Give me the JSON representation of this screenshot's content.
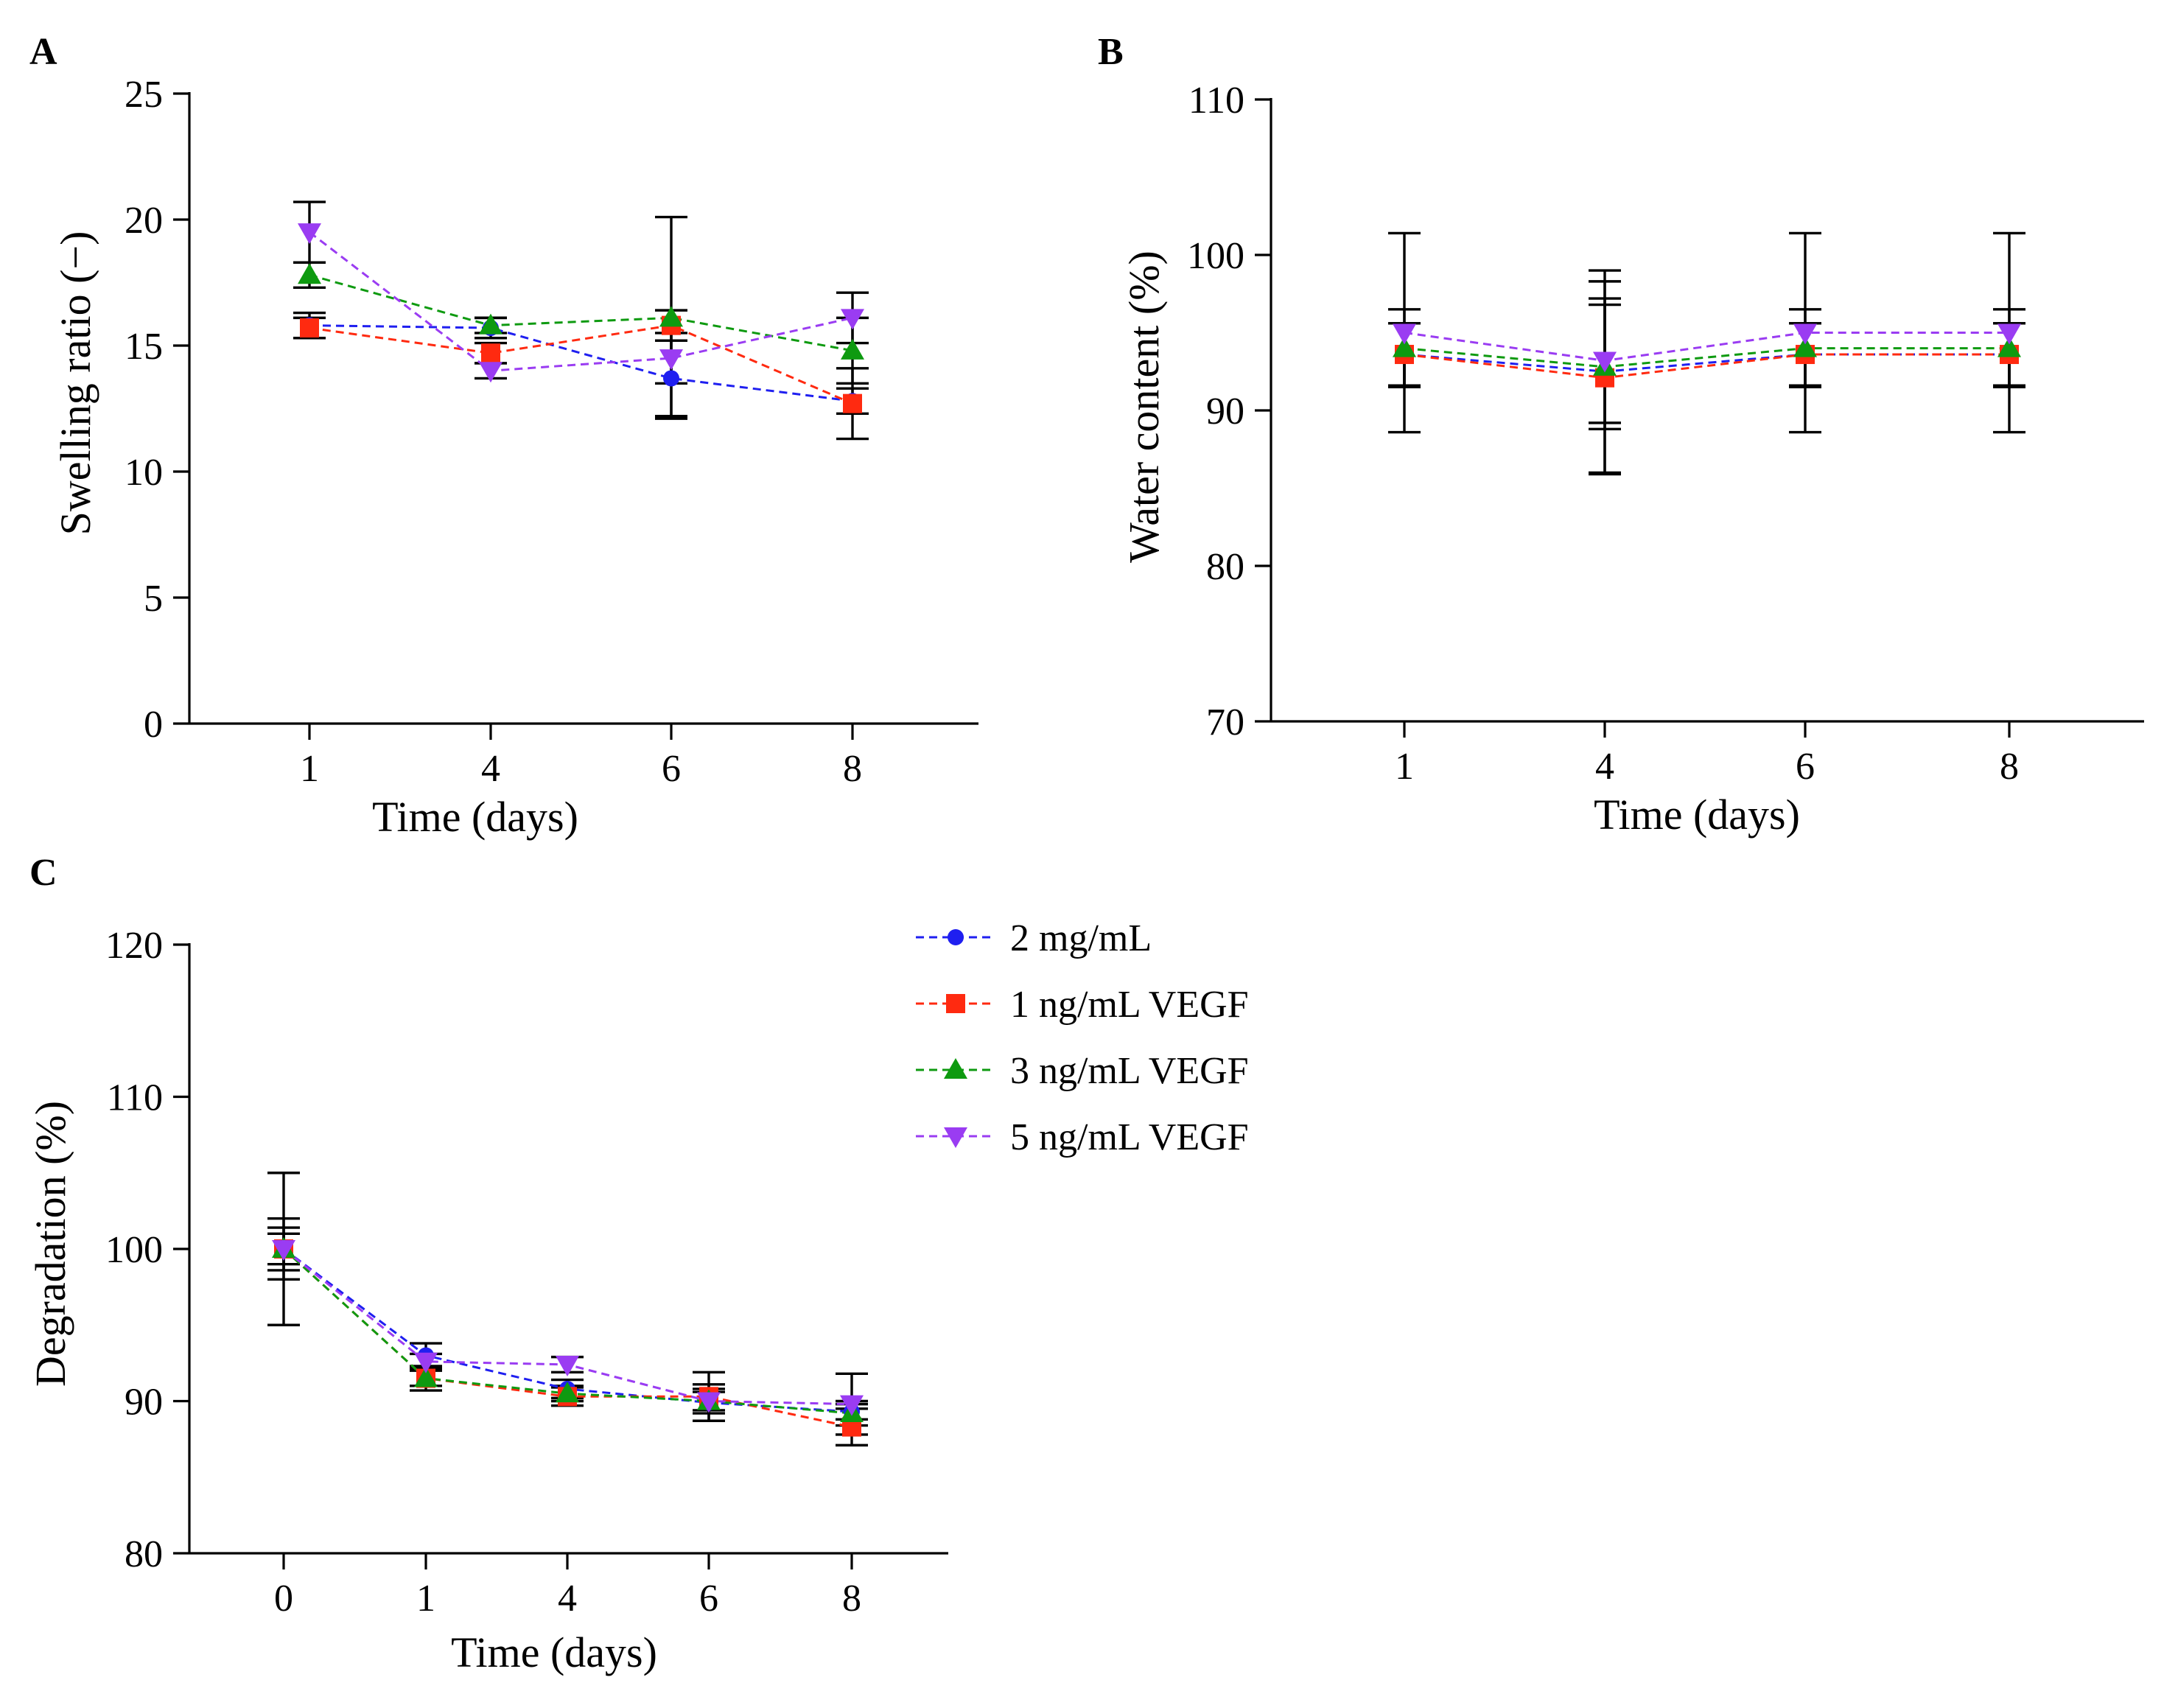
{
  "chart_data": [
    {
      "panel": "A",
      "type": "line",
      "xlabel": "Time (days)",
      "ylabel": "Swelling ratio (−)",
      "categories": [
        "1",
        "4",
        "6",
        "8"
      ],
      "ylim": [
        0,
        25
      ],
      "yticks": [
        0,
        5,
        10,
        15,
        20,
        25
      ],
      "series": [
        {
          "name": "2 mg/mL",
          "values": [
            15.8,
            15.7,
            13.7,
            12.8
          ],
          "errors": [
            0.5,
            0.4,
            1.5,
            0.5
          ]
        },
        {
          "name": "1 ng/mL VEGF",
          "values": [
            15.7,
            14.7,
            15.8,
            12.7
          ],
          "errors": [
            0.4,
            0.4,
            0.6,
            1.4
          ]
        },
        {
          "name": "3 ng/mL VEGF",
          "values": [
            17.8,
            15.8,
            16.1,
            14.8
          ],
          "errors": [
            0.5,
            0.3,
            4.0,
            1.3
          ]
        },
        {
          "name": "5 ng/mL VEGF",
          "values": [
            19.5,
            14.0,
            14.5,
            16.1
          ],
          "errors": [
            1.2,
            0.3,
            1.0,
            1.0
          ]
        }
      ]
    },
    {
      "panel": "B",
      "type": "line",
      "xlabel": "Time (days)",
      "ylabel": "Water content (%)",
      "categories": [
        "1",
        "4",
        "6",
        "8"
      ],
      "ylim": [
        70,
        110
      ],
      "yticks": [
        70,
        80,
        90,
        100,
        110
      ],
      "series": [
        {
          "name": "2 mg/mL",
          "values": [
            93.6,
            92.5,
            93.6,
            93.6
          ],
          "errors": [
            2.0,
            6.5,
            2.0,
            2.0
          ]
        },
        {
          "name": "1 ng/mL VEGF",
          "values": [
            93.6,
            92.1,
            93.6,
            93.6
          ],
          "errors": [
            2.0,
            6.2,
            2.0,
            2.0
          ]
        },
        {
          "name": "3 ng/mL VEGF",
          "values": [
            94.0,
            92.8,
            94.0,
            94.0
          ],
          "errors": [
            2.5,
            4.0,
            2.5,
            2.5
          ]
        },
        {
          "name": "5 ng/mL VEGF",
          "values": [
            95.0,
            93.2,
            95.0,
            95.0
          ],
          "errors": [
            6.4,
            4.0,
            6.4,
            6.4
          ]
        }
      ]
    },
    {
      "panel": "C",
      "type": "line",
      "xlabel": "Time (days)",
      "ylabel": "Degradation (%)",
      "categories": [
        "0",
        "1",
        "4",
        "6",
        "8"
      ],
      "ylim": [
        80,
        120
      ],
      "yticks": [
        80,
        90,
        100,
        110,
        120
      ],
      "series": [
        {
          "name": "2 mg/mL",
          "values": [
            100,
            93.0,
            90.8,
            89.9,
            89.3
          ],
          "errors": [
            5.0,
            0.8,
            0.6,
            1.2,
            0.5
          ]
        },
        {
          "name": "1 ng/mL VEGF",
          "values": [
            100,
            91.5,
            90.3,
            90.3,
            88.3
          ],
          "errors": [
            1.4,
            0.8,
            0.6,
            1.6,
            1.2
          ]
        },
        {
          "name": "3 ng/mL VEGF",
          "values": [
            100,
            91.5,
            90.5,
            90.0,
            89.2
          ],
          "errors": [
            2.0,
            0.5,
            0.5,
            0.8,
            0.8
          ]
        },
        {
          "name": "5 ng/mL VEGF",
          "values": [
            100,
            92.6,
            92.4,
            90.0,
            89.8
          ],
          "errors": [
            1.0,
            0.5,
            0.5,
            0.6,
            2.0
          ]
        }
      ]
    }
  ],
  "legend": {
    "items": [
      {
        "label": "2 mg/mL",
        "color": "#1f1ff0",
        "marker": "circle"
      },
      {
        "label": "1 ng/mL VEGF",
        "color": "#ff2a10",
        "marker": "square"
      },
      {
        "label": "3 ng/mL VEGF",
        "color": "#0e9a10",
        "marker": "triangle-up"
      },
      {
        "label": "5 ng/mL VEGF",
        "color": "#9a3cf2",
        "marker": "triangle-down"
      }
    ]
  }
}
